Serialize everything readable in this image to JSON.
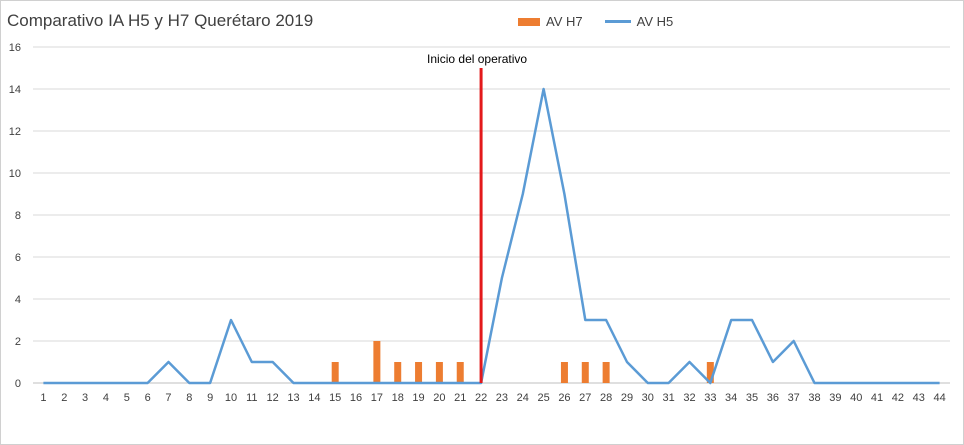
{
  "chart_data": {
    "type": "bar",
    "title": "Comparativo IA H5 y H7 Querétaro 2019",
    "xlabel": "",
    "ylabel": "",
    "ylim": [
      0,
      16
    ],
    "yticks": [
      0,
      2,
      4,
      6,
      8,
      10,
      12,
      14,
      16
    ],
    "categories": [
      "1",
      "2",
      "3",
      "4",
      "5",
      "6",
      "7",
      "8",
      "9",
      "10",
      "11",
      "12",
      "13",
      "14",
      "15",
      "16",
      "17",
      "18",
      "19",
      "20",
      "21",
      "22",
      "23",
      "24",
      "25",
      "26",
      "27",
      "28",
      "29",
      "30",
      "31",
      "32",
      "33",
      "34",
      "35",
      "36",
      "37",
      "38",
      "39",
      "40",
      "41",
      "42",
      "43",
      "44"
    ],
    "grid": true,
    "legend_position": "top",
    "series": [
      {
        "name": "AV H7",
        "kind": "bar",
        "color": "#ed7d31",
        "values": [
          0,
          0,
          0,
          0,
          0,
          0,
          0,
          0,
          0,
          0,
          0,
          0,
          0,
          0,
          1,
          0,
          2,
          1,
          1,
          1,
          1,
          0,
          0,
          0,
          0,
          1,
          1,
          1,
          0,
          0,
          0,
          0,
          1,
          0,
          0,
          0,
          0,
          0,
          0,
          0,
          0,
          0,
          0,
          0
        ]
      },
      {
        "name": "AV H5",
        "kind": "line",
        "color": "#5b9bd5",
        "values": [
          0,
          0,
          0,
          0,
          0,
          0,
          1,
          0,
          0,
          3,
          1,
          1,
          0,
          0,
          0,
          0,
          0,
          0,
          0,
          0,
          0,
          0,
          5,
          9,
          14,
          9,
          3,
          3,
          1,
          0,
          0,
          1,
          0,
          3,
          3,
          1,
          2,
          0,
          0,
          0,
          0,
          0,
          0,
          0
        ]
      }
    ],
    "annotations": [
      {
        "text": "Inicio del operativo",
        "x": "22",
        "color": "#e3191b"
      }
    ]
  }
}
